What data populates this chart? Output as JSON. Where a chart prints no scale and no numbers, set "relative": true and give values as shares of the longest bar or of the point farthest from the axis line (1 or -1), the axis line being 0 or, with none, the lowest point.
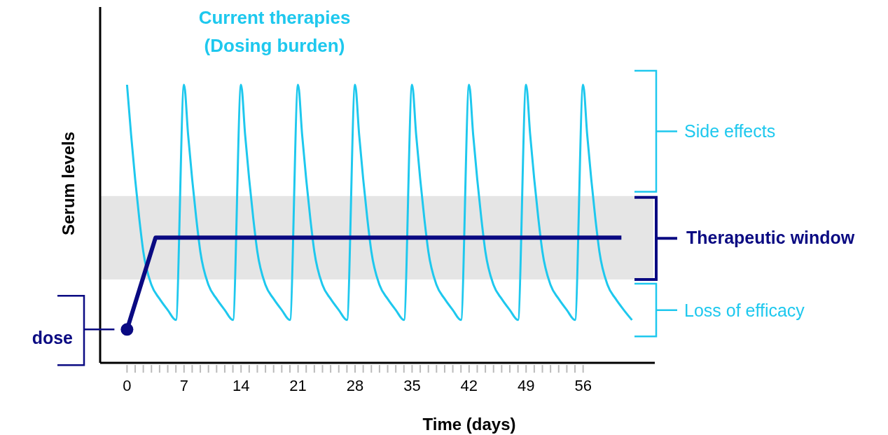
{
  "chart_data": {
    "type": "line",
    "relative": true,
    "xlabel": "Time (days)",
    "ylabel": "Serum levels",
    "xlim": [
      -3.3,
      64.8
    ],
    "xticks": [
      0,
      {
        "value": 1,
        "label": null
      },
      {
        "value": 2,
        "label": null
      },
      {
        "value": 3,
        "label": null
      },
      {
        "value": 4,
        "label": null
      },
      {
        "value": 5,
        "label": null
      },
      {
        "value": 6,
        "label": null
      },
      7,
      {
        "value": 8,
        "label": null
      },
      {
        "value": 9,
        "label": null
      },
      {
        "value": 10,
        "label": null
      },
      {
        "value": 11,
        "label": null
      },
      {
        "value": 12,
        "label": null
      },
      {
        "value": 13,
        "label": null
      },
      14,
      {
        "value": 15,
        "label": null
      },
      {
        "value": 16,
        "label": null
      },
      {
        "value": 17,
        "label": null
      },
      {
        "value": 18,
        "label": null
      },
      {
        "value": 19,
        "label": null
      },
      {
        "value": 20,
        "label": null
      },
      21,
      {
        "value": 22,
        "label": null
      },
      {
        "value": 23,
        "label": null
      },
      {
        "value": 24,
        "label": null
      },
      {
        "value": 25,
        "label": null
      },
      {
        "value": 26,
        "label": null
      },
      {
        "value": 27,
        "label": null
      },
      28,
      {
        "value": 29,
        "label": null
      },
      {
        "value": 30,
        "label": null
      },
      {
        "value": 31,
        "label": null
      },
      {
        "value": 32,
        "label": null
      },
      {
        "value": 33,
        "label": null
      },
      {
        "value": 34,
        "label": null
      },
      35,
      {
        "value": 36,
        "label": null
      },
      {
        "value": 37,
        "label": null
      },
      {
        "value": 38,
        "label": null
      },
      {
        "value": 39,
        "label": null
      },
      {
        "value": 40,
        "label": null
      },
      {
        "value": 41,
        "label": null
      },
      42,
      {
        "value": 43,
        "label": null
      },
      {
        "value": 44,
        "label": null
      },
      {
        "value": 45,
        "label": null
      },
      {
        "value": 46,
        "label": null
      },
      {
        "value": 47,
        "label": null
      },
      {
        "value": 48,
        "label": null
      },
      49,
      {
        "value": 50,
        "label": null
      },
      {
        "value": 51,
        "label": null
      },
      {
        "value": 52,
        "label": null
      },
      {
        "value": 53,
        "label": null
      },
      {
        "value": 54,
        "label": null
      },
      {
        "value": 55,
        "label": null
      },
      56
    ],
    "bands": [
      {
        "axis": "y",
        "from": 0.3,
        "to": 0.6,
        "label": "Therapeutic window",
        "color": "#e5e5e5"
      }
    ],
    "annotations": [
      "Side effects",
      "Loss of efficacy"
    ],
    "series": [
      {
        "name": "Current therapies (Dosing burden)",
        "color": "#1ec8ee",
        "x": [
          0,
          0.5,
          1,
          1.5,
          2,
          3,
          4,
          5,
          6,
          7,
          7.5,
          8,
          8.5,
          9,
          10,
          11,
          12,
          13,
          14,
          14.5,
          15,
          15.5,
          16,
          17,
          18,
          19,
          20,
          21,
          21.5,
          22,
          22.5,
          23,
          24,
          25,
          26,
          27,
          28,
          28.5,
          29,
          29.5,
          30,
          31,
          32,
          33,
          34,
          35,
          35.5,
          36,
          36.5,
          37,
          38,
          39,
          40,
          41,
          42,
          42.5,
          43,
          43.5,
          44,
          45,
          46,
          47,
          48,
          49,
          49.5,
          50,
          50.5,
          51,
          52,
          53,
          54,
          55,
          56,
          56.5,
          57,
          57.5,
          58,
          59,
          60,
          61,
          62
        ],
        "values": [
          1,
          0.82,
          0.66,
          0.52,
          0.4,
          0.28,
          0.23,
          0.19,
          0.154,
          1,
          0.82,
          0.66,
          0.52,
          0.4,
          0.28,
          0.23,
          0.19,
          0.154,
          1,
          0.82,
          0.66,
          0.52,
          0.4,
          0.28,
          0.23,
          0.19,
          0.154,
          1,
          0.82,
          0.66,
          0.52,
          0.4,
          0.28,
          0.23,
          0.19,
          0.154,
          1,
          0.82,
          0.66,
          0.52,
          0.4,
          0.28,
          0.23,
          0.19,
          0.154,
          1,
          0.82,
          0.66,
          0.52,
          0.4,
          0.28,
          0.23,
          0.19,
          0.154,
          1,
          0.82,
          0.66,
          0.52,
          0.4,
          0.28,
          0.23,
          0.19,
          0.154,
          1,
          0.82,
          0.66,
          0.52,
          0.4,
          0.28,
          0.23,
          0.19,
          0.154,
          1,
          0.82,
          0.66,
          0.52,
          0.4,
          0.28,
          0.23,
          0.19,
          0.154
        ]
      },
      {
        "name": "dose",
        "color": "#0a0a82",
        "x": [
          0,
          3.5,
          60.7
        ],
        "values": [
          0.12,
          0.45,
          0.45
        ]
      },
      {
        "type": "scatter",
        "color": "#0a0a82",
        "marker": "circle",
        "x": [
          0
        ],
        "values": [
          0.12
        ]
      }
    ]
  }
}
